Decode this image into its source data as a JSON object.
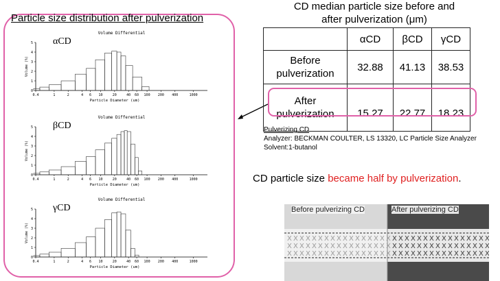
{
  "panel": {
    "title": "Particle size distribution after pulverization"
  },
  "chart_data": [
    {
      "type": "bar",
      "label": "αCD",
      "title": "Volume Differential",
      "xlabel": "Particle Diameter (um)",
      "ylabel": "Volume (%)",
      "xscale": "log",
      "xlim": [
        0.4,
        2000
      ],
      "ylim": [
        0,
        5
      ],
      "x_ticks": [
        "0.4",
        "1",
        "2",
        "4",
        "6",
        "10",
        "20",
        "40",
        "60",
        "100",
        "200",
        "400",
        "1000"
      ],
      "y_ticks": [
        "0",
        "1",
        "2",
        "3",
        "4",
        "5"
      ],
      "x": [
        0.4,
        0.6,
        1,
        2,
        4,
        6,
        10,
        15,
        20,
        25,
        30,
        40,
        60,
        100
      ],
      "values": [
        0.2,
        0.35,
        0.6,
        1.0,
        1.7,
        2.3,
        3.2,
        3.9,
        4.1,
        4.0,
        3.6,
        2.6,
        1.4,
        0.4
      ]
    },
    {
      "type": "bar",
      "label": "βCD",
      "title": "Volume Differential",
      "xlabel": "Particle Diameter (um)",
      "ylabel": "Volume (%)",
      "xscale": "log",
      "xlim": [
        0.4,
        2000
      ],
      "ylim": [
        0,
        5
      ],
      "x_ticks": [
        "0.4",
        "1",
        "2",
        "4",
        "6",
        "10",
        "20",
        "40",
        "60",
        "100",
        "200",
        "400",
        "1000"
      ],
      "y_ticks": [
        "0",
        "1",
        "2",
        "3",
        "4",
        "5"
      ],
      "x": [
        0.4,
        0.6,
        1,
        2,
        4,
        6,
        10,
        15,
        20,
        25,
        30,
        35,
        40,
        50,
        60,
        70
      ],
      "values": [
        0.15,
        0.3,
        0.5,
        0.85,
        1.4,
        1.9,
        2.6,
        3.3,
        3.8,
        4.2,
        4.5,
        4.6,
        4.5,
        3.2,
        1.8,
        0.4
      ]
    },
    {
      "type": "bar",
      "label": "γCD",
      "title": "Volume Differential",
      "xlabel": "Particle Diameter (um)",
      "ylabel": "Volume (%)",
      "xscale": "log",
      "xlim": [
        0.4,
        2000
      ],
      "ylim": [
        0,
        5
      ],
      "x_ticks": [
        "0.4",
        "1",
        "2",
        "4",
        "6",
        "10",
        "20",
        "40",
        "60",
        "100",
        "200",
        "400",
        "1000"
      ],
      "y_ticks": [
        "0",
        "1",
        "2",
        "3",
        "4",
        "5"
      ],
      "x": [
        0.4,
        0.6,
        1,
        2,
        4,
        6,
        10,
        15,
        20,
        25,
        30,
        40,
        50,
        60
      ],
      "values": [
        0.15,
        0.3,
        0.5,
        0.9,
        1.5,
        2.1,
        3.0,
        3.9,
        4.6,
        4.7,
        4.5,
        2.8,
        0.9,
        0.2
      ]
    }
  ],
  "table": {
    "title_line1": "CD median particle size before and",
    "title_line2": "after pulverization (μm)",
    "headers": [
      "",
      "αCD",
      "βCD",
      "γCD"
    ],
    "rows": [
      {
        "label_line1": "Before",
        "label_line2": "pulverization",
        "values": [
          "32.88",
          "41.13",
          "38.53"
        ]
      },
      {
        "label_line1": "After",
        "label_line2": "pulverization",
        "values": [
          "15.27",
          "22.77",
          "18.23"
        ]
      }
    ]
  },
  "note": {
    "heading": "Pulverizing CD",
    "analyzer": "Analyzer: BECKMAN COULTER, LS 13320, LC Particle Size Analyzer",
    "solvent": "Solvent:1-butanol"
  },
  "conclusion": {
    "prefix": "CD particle size ",
    "highlight": "became half by pulverization",
    "suffix": ".",
    "highlight_color": "#e02020"
  },
  "photo": {
    "left_label": "Before pulverizing CD",
    "right_label": "After pulverizing CD"
  },
  "colors": {
    "accent": "#e060a8"
  }
}
